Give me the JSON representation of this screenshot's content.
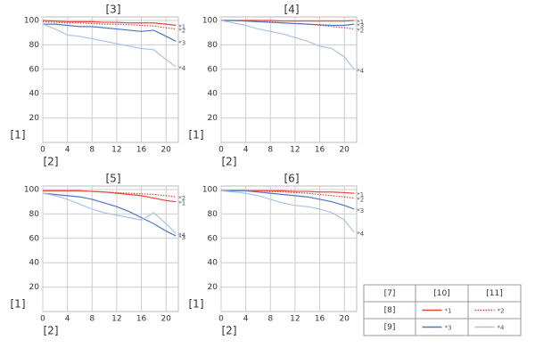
{
  "chart_data": [
    {
      "type": "line",
      "title": "[3]",
      "y_label": "[1]",
      "x_label": "[2]",
      "x": [
        0,
        2,
        4,
        6,
        8,
        10,
        12,
        14,
        16,
        18,
        20,
        21.6
      ],
      "xlim": [
        0,
        22
      ],
      "xticks": [
        0,
        4,
        8,
        12,
        16,
        20
      ],
      "ylim": [
        0,
        100
      ],
      "yticks": [
        20,
        40,
        60,
        80,
        100
      ],
      "grid": true,
      "series": [
        {
          "name": "*1",
          "color": "#e8453c",
          "style": "solid",
          "values": [
            100,
            99.5,
            99,
            99,
            99,
            98.5,
            98.5,
            98,
            98,
            98,
            97,
            96
          ]
        },
        {
          "name": "*2",
          "color": "#e8453c",
          "style": "dotted",
          "values": [
            99,
            98.5,
            98,
            98,
            97.5,
            97,
            97,
            96.5,
            96,
            95.5,
            94,
            93
          ]
        },
        {
          "name": "*3",
          "color": "#4a78c2",
          "style": "solid",
          "values": [
            97,
            97,
            96,
            95,
            95,
            94,
            93,
            92,
            91,
            92,
            87,
            83
          ]
        },
        {
          "name": "*4",
          "color": "#a9c3e8",
          "style": "solid",
          "values": [
            97,
            93,
            88,
            87,
            85,
            83,
            81,
            79,
            77,
            76,
            68,
            62
          ]
        }
      ]
    },
    {
      "type": "line",
      "title": "[4]",
      "y_label": "[1]",
      "x_label": "[2]",
      "x": [
        0,
        2,
        4,
        6,
        8,
        10,
        12,
        14,
        16,
        18,
        20,
        21.6
      ],
      "xlim": [
        0,
        22
      ],
      "xticks": [
        0,
        4,
        8,
        12,
        16,
        20
      ],
      "ylim": [
        0,
        100
      ],
      "yticks": [
        20,
        40,
        60,
        80,
        100
      ],
      "grid": true,
      "series": [
        {
          "name": "*1",
          "color": "#e8453c",
          "style": "solid",
          "values": [
            100,
            100,
            100,
            100,
            100,
            99.5,
            99.5,
            99.5,
            99.5,
            99.5,
            99.5,
            100
          ]
        },
        {
          "name": "*2",
          "color": "#e8453c",
          "style": "dotted",
          "values": [
            100,
            100,
            99.5,
            99,
            99,
            98,
            97.5,
            97,
            96,
            95,
            94,
            93
          ]
        },
        {
          "name": "*3",
          "color": "#4a78c2",
          "style": "solid",
          "values": [
            100,
            100,
            99.5,
            99,
            98.5,
            98,
            97.5,
            97,
            96.5,
            96,
            96,
            97
          ]
        },
        {
          "name": "*4",
          "color": "#a9c3e8",
          "style": "solid",
          "values": [
            100,
            98,
            96,
            93,
            91,
            89,
            86,
            83,
            79,
            77,
            70,
            60
          ]
        }
      ]
    },
    {
      "type": "line",
      "title": "[5]",
      "y_label": "[1]",
      "x_label": "[2]",
      "x": [
        0,
        2,
        4,
        6,
        8,
        10,
        12,
        14,
        16,
        18,
        20,
        21.6
      ],
      "xlim": [
        0,
        22
      ],
      "xticks": [
        0,
        4,
        8,
        12,
        16,
        20
      ],
      "ylim": [
        0,
        100
      ],
      "yticks": [
        20,
        40,
        60,
        80,
        100
      ],
      "grid": true,
      "series": [
        {
          "name": "*1",
          "color": "#e8453c",
          "style": "solid",
          "values": [
            99,
            99,
            99,
            99,
            98.5,
            98,
            97,
            96,
            95,
            93,
            91,
            90
          ]
        },
        {
          "name": "*2",
          "color": "#e8453c",
          "style": "dotted",
          "values": [
            99,
            99,
            99,
            99,
            98.5,
            98,
            97.5,
            97,
            96.5,
            96,
            95,
            94
          ]
        },
        {
          "name": "*3",
          "color": "#4a78c2",
          "style": "solid",
          "values": [
            97,
            96,
            95,
            94,
            92,
            89,
            86,
            82,
            77,
            72,
            66,
            62
          ]
        },
        {
          "name": "*4",
          "color": "#a9c3e8",
          "style": "solid",
          "values": [
            97,
            95,
            92,
            88,
            84,
            81,
            79,
            77,
            75,
            81,
            72,
            64
          ]
        }
      ]
    },
    {
      "type": "line",
      "title": "[6]",
      "y_label": "[1]",
      "x_label": "[2]",
      "x": [
        0,
        2,
        4,
        6,
        8,
        10,
        12,
        14,
        16,
        18,
        20,
        21.6
      ],
      "xlim": [
        0,
        22
      ],
      "xticks": [
        0,
        4,
        8,
        12,
        16,
        20
      ],
      "ylim": [
        0,
        100
      ],
      "yticks": [
        20,
        40,
        60,
        80,
        100
      ],
      "grid": true,
      "series": [
        {
          "name": "*1",
          "color": "#e8453c",
          "style": "solid",
          "values": [
            99,
            99,
            99,
            99,
            99,
            99,
            98.5,
            98.5,
            98,
            98,
            97.5,
            97
          ]
        },
        {
          "name": "*2",
          "color": "#e8453c",
          "style": "dotted",
          "values": [
            99,
            99,
            99,
            99,
            98.5,
            98,
            97.5,
            97,
            96,
            95,
            94,
            93
          ]
        },
        {
          "name": "*3",
          "color": "#4a78c2",
          "style": "solid",
          "values": [
            99,
            99,
            99,
            98,
            97,
            96,
            95,
            94,
            92,
            90,
            87,
            84
          ]
        },
        {
          "name": "*4",
          "color": "#a9c3e8",
          "style": "solid",
          "values": [
            99,
            98,
            97,
            95,
            92,
            89,
            87,
            86,
            84,
            81,
            75,
            65
          ]
        }
      ]
    }
  ],
  "legend_table": {
    "header": [
      "[7]",
      "[10]",
      "[11]"
    ],
    "rows": [
      "[8]",
      "[9]"
    ]
  }
}
